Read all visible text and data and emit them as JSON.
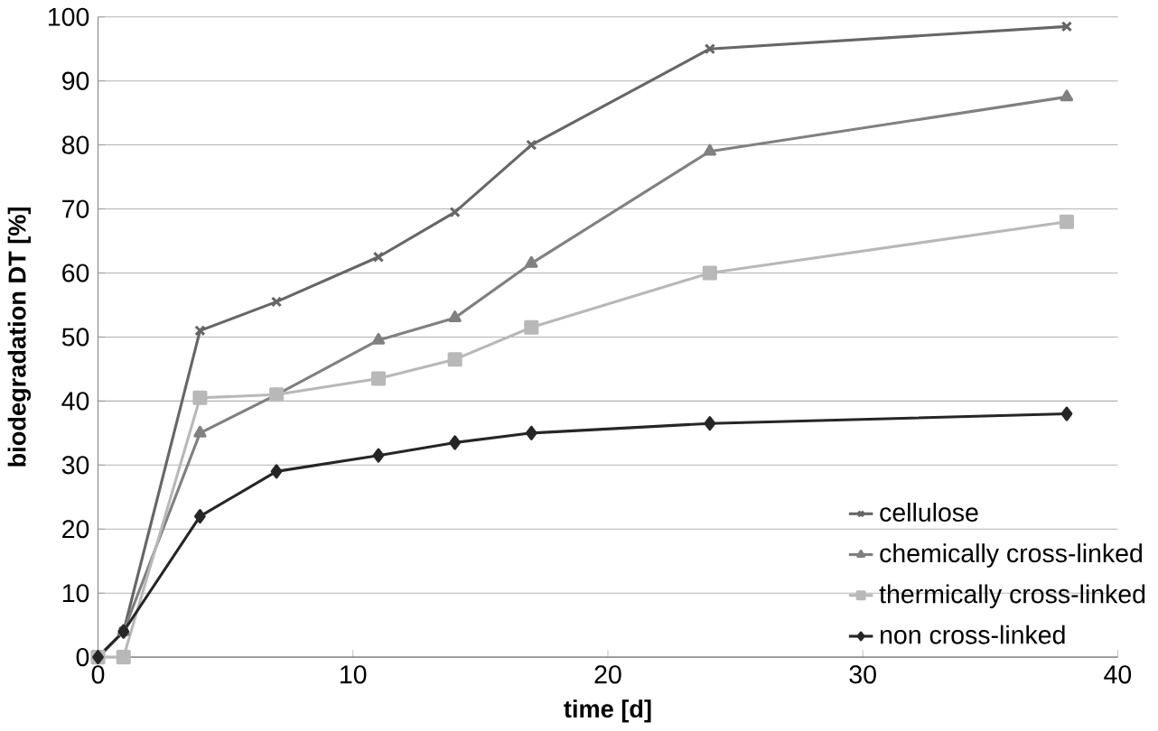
{
  "chart_data": {
    "type": "line",
    "xlabel": "time [d]",
    "ylabel": "biodegradation DT  [%]",
    "x": [
      0,
      1,
      4,
      7,
      11,
      14,
      17,
      24,
      38
    ],
    "xlim": [
      0,
      40
    ],
    "xticks": [
      0,
      10,
      20,
      30,
      40
    ],
    "ylim": [
      0,
      100
    ],
    "yticks": [
      0,
      10,
      20,
      30,
      40,
      50,
      60,
      70,
      80,
      90,
      100
    ],
    "grid": "y",
    "legend": "bottom right",
    "series": [
      {
        "name": "cellulose",
        "color": "#666666",
        "marker": "cross",
        "values": [
          0,
          4,
          51,
          55.5,
          62.5,
          69.5,
          80,
          95,
          98.5
        ]
      },
      {
        "name": "chemically cross-linked",
        "color": "#808080",
        "marker": "triangle",
        "values": [
          0,
          4,
          35,
          41,
          49.5,
          53,
          61.5,
          79,
          87.5
        ]
      },
      {
        "name": "thermically cross-linked",
        "color": "#b8b8b8",
        "marker": "square",
        "values": [
          0,
          0,
          40.5,
          41,
          43.5,
          46.5,
          51.5,
          60,
          68
        ]
      },
      {
        "name": "non cross-linked",
        "color": "#262626",
        "marker": "diamond",
        "values": [
          0,
          4,
          22,
          29,
          31.5,
          33.5,
          35,
          36.5,
          38
        ]
      }
    ]
  }
}
